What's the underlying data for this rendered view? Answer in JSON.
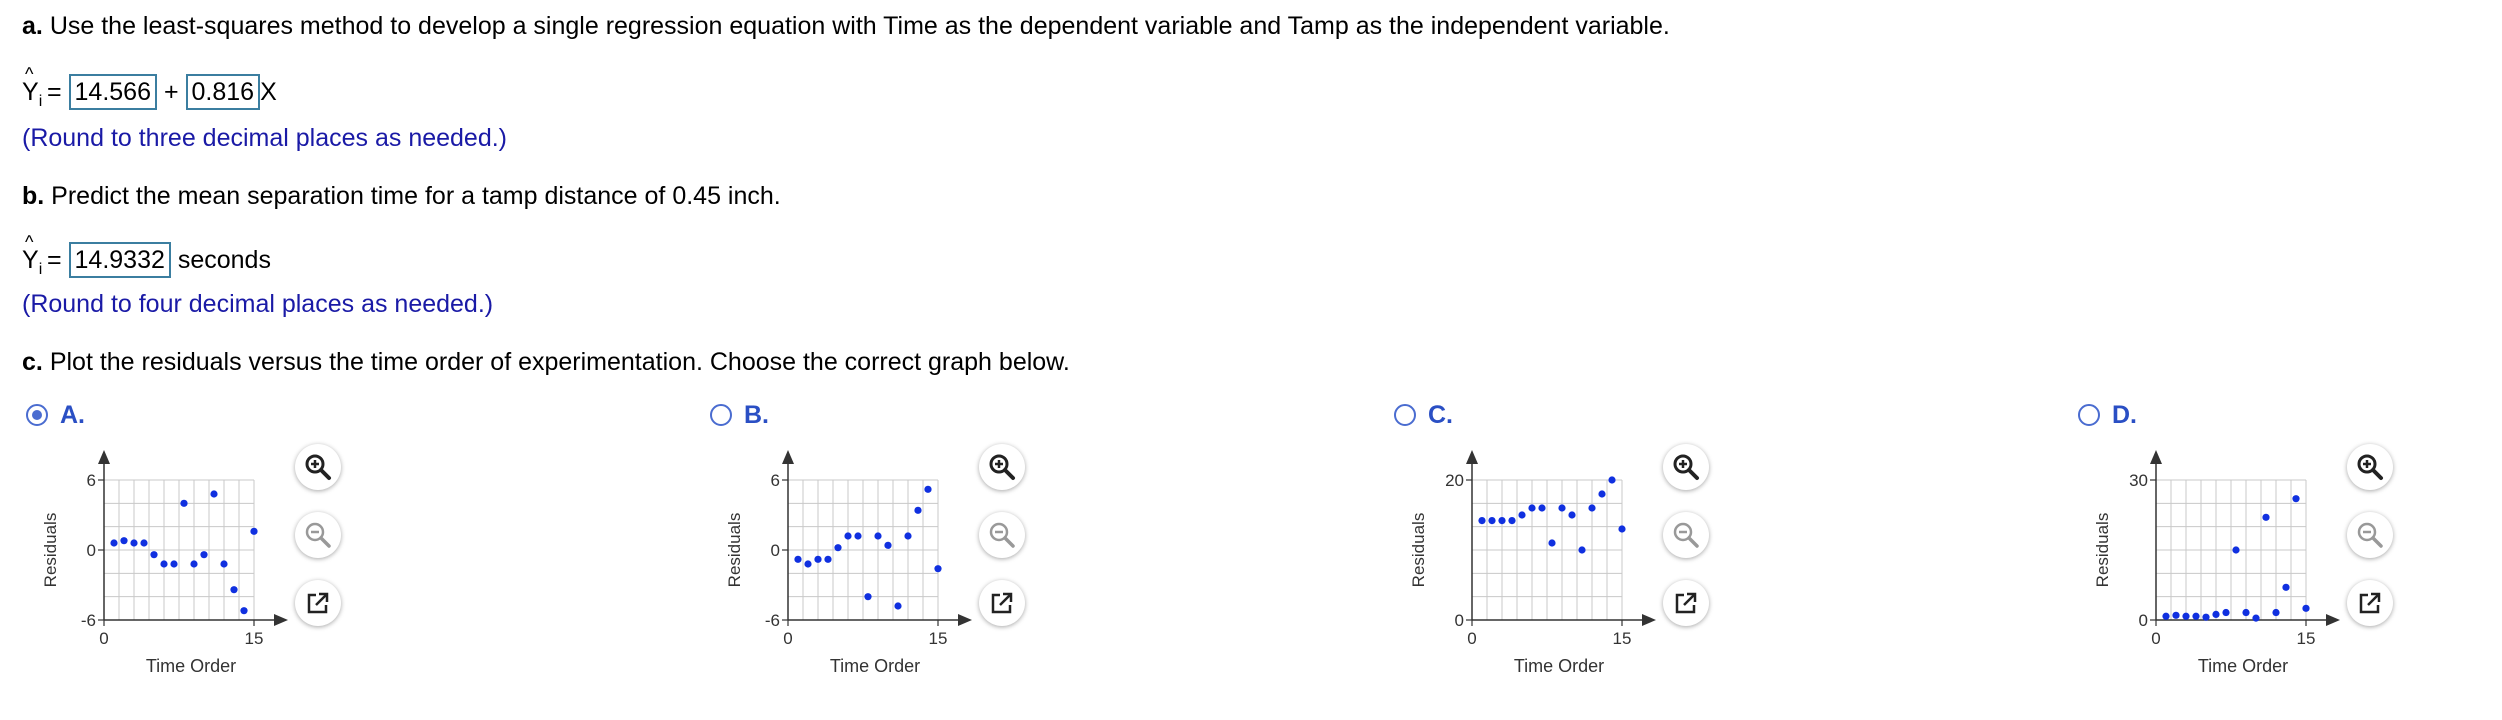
{
  "part_a": {
    "letter": "a.",
    "text": "Use the least-squares method to develop a single regression equation with Time as the dependent variable and Tamp as the independent variable.",
    "yhat": "Y",
    "sub": "i",
    "equals": "=",
    "intercept": "14.566",
    "plus": "+",
    "slope": "0.816",
    "x": "X",
    "hint": "(Round to three decimal places as needed.)"
  },
  "part_b": {
    "letter": "b.",
    "text": "Predict the mean separation time for a tamp distance of 0.45 inch.",
    "yhat": "Y",
    "sub": "i",
    "equals": "=",
    "value": "14.9332",
    "unit": "seconds",
    "hint": "(Round to four decimal places as needed.)"
  },
  "part_c": {
    "letter": "c.",
    "text": "Plot the residuals versus the time order of experimentation. Choose the correct graph below."
  },
  "options": [
    {
      "letter": "A.",
      "selected": true
    },
    {
      "letter": "B.",
      "selected": false
    },
    {
      "letter": "C.",
      "selected": false
    },
    {
      "letter": "D.",
      "selected": false
    }
  ],
  "icons": {
    "zoom_in": "zoom-in-icon",
    "zoom_out": "zoom-out-icon",
    "open": "external-link-icon"
  },
  "colors": {
    "point": "#1030e0",
    "grid": "#c8c8c8",
    "radio": "#4a6cd0",
    "answer_border": "#3b7ea0"
  },
  "chart_data": [
    {
      "type": "scatter",
      "xlabel": "Time Order",
      "ylabel": "Residuals",
      "xlim": [
        0,
        15
      ],
      "ylim": [
        -6,
        6
      ],
      "xticks": [
        "0",
        "15"
      ],
      "yticks": [
        "6",
        "0",
        "-6"
      ],
      "x": [
        1,
        2,
        3,
        4,
        5,
        6,
        7,
        8,
        9,
        10,
        11,
        12,
        13,
        14,
        15
      ],
      "y": [
        0.6,
        0.8,
        0.6,
        0.6,
        -0.4,
        -1.2,
        -1.2,
        4.0,
        -1.2,
        -0.4,
        4.8,
        -1.2,
        -3.4,
        -5.2,
        1.6
      ]
    },
    {
      "type": "scatter",
      "xlabel": "Time Order",
      "ylabel": "Residuals",
      "xlim": [
        0,
        15
      ],
      "ylim": [
        -6,
        6
      ],
      "xticks": [
        "0",
        "15"
      ],
      "yticks": [
        "6",
        "0",
        "-6"
      ],
      "x": [
        1,
        2,
        3,
        4,
        5,
        6,
        7,
        8,
        9,
        10,
        11,
        12,
        13,
        14,
        15
      ],
      "y": [
        -0.8,
        -1.2,
        -0.8,
        -0.8,
        0.2,
        1.2,
        1.2,
        -4.0,
        1.2,
        0.4,
        -4.8,
        1.2,
        3.4,
        5.2,
        -1.6
      ]
    },
    {
      "type": "scatter",
      "xlabel": "Time Order",
      "ylabel": "Residuals",
      "xlim": [
        0,
        15
      ],
      "ylim": [
        0,
        20
      ],
      "xticks": [
        "0",
        "15"
      ],
      "yticks": [
        "20",
        "0"
      ],
      "x": [
        1,
        2,
        3,
        4,
        5,
        6,
        7,
        8,
        9,
        10,
        11,
        12,
        13,
        14,
        15
      ],
      "y": [
        14.2,
        14.2,
        14.2,
        14.2,
        15.0,
        16.0,
        16.0,
        11.0,
        16.0,
        15.0,
        10.0,
        16.0,
        18.0,
        20.0,
        13.0
      ]
    },
    {
      "type": "scatter",
      "xlabel": "Time Order",
      "ylabel": "Residuals",
      "xlim": [
        0,
        15
      ],
      "ylim": [
        0,
        30
      ],
      "xticks": [
        "0",
        "15"
      ],
      "yticks": [
        "30",
        "0"
      ],
      "x": [
        1,
        2,
        3,
        4,
        5,
        6,
        7,
        8,
        9,
        10,
        11,
        12,
        13,
        14,
        15
      ],
      "y": [
        0.8,
        1.0,
        0.8,
        0.8,
        0.6,
        1.2,
        1.6,
        15.0,
        1.6,
        0.4,
        22.0,
        1.6,
        7.0,
        26.0,
        2.5
      ]
    }
  ]
}
